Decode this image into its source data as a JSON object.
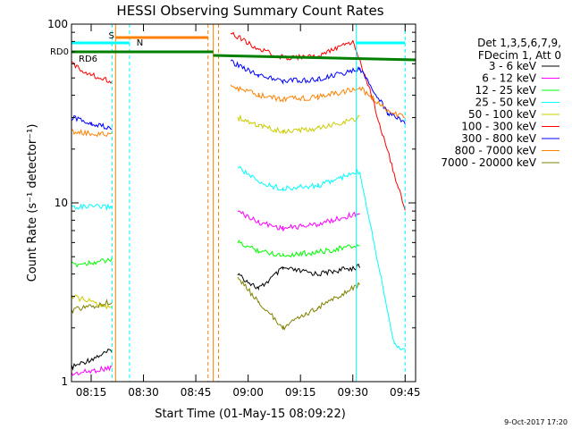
{
  "chart_data": {
    "type": "line",
    "title": "HESSI Observing Summary Count Rates",
    "xlabel": "Start Time (01-May-15 08:09:22)",
    "ylabel": "Count Rate (s⁻¹ detector⁻¹)",
    "y_scale": "log",
    "ylim": [
      1,
      100
    ],
    "xlim": [
      "08:09:22",
      "09:48:00"
    ],
    "x_ticks": [
      "08:15",
      "08:30",
      "08:45",
      "09:00",
      "09:15",
      "09:30",
      "09:45"
    ],
    "y_ticks": [
      "1",
      "10",
      "100"
    ],
    "legend_header": [
      "Det 1,3,5,6,7,9,",
      "FDecim 1, Att 0"
    ],
    "series": [
      {
        "name": "3 - 6 keV",
        "color": "#000000",
        "x": [
          "08:09:22",
          "08:21:00",
          "08:50:00",
          "08:57:00",
          "09:03:00",
          "09:10:00",
          "09:20:00",
          "09:32:00"
        ],
        "y": [
          1.2,
          1.5,
          null,
          4.0,
          3.3,
          4.3,
          4.0,
          4.4
        ]
      },
      {
        "name": "6 - 12 keV",
        "color": "#ff00ff",
        "x": [
          "08:09:22",
          "08:21:00",
          "08:50:00",
          "08:57:00",
          "09:03:00",
          "09:10:00",
          "09:20:00",
          "09:32:00"
        ],
        "y": [
          1.1,
          1.2,
          null,
          9.0,
          7.8,
          7.2,
          7.6,
          8.8
        ]
      },
      {
        "name": "12 - 25 keV",
        "color": "#00ff00",
        "x": [
          "08:09:22",
          "08:21:00",
          "08:50:00",
          "08:57:00",
          "09:03:00",
          "09:10:00",
          "09:20:00",
          "09:32:00"
        ],
        "y": [
          4.5,
          4.8,
          null,
          6.0,
          5.4,
          5.1,
          5.3,
          5.8
        ]
      },
      {
        "name": "25 - 50 keV",
        "color": "#00ffff",
        "x": [
          "08:09:22",
          "08:21:00",
          "08:50:00",
          "08:57:00",
          "09:03:00",
          "09:10:00",
          "09:20:00",
          "09:32:00",
          "09:42:00",
          "09:45:00"
        ],
        "y": [
          9.5,
          9.5,
          null,
          16,
          13,
          12,
          12.5,
          15,
          1.6,
          1.5
        ]
      },
      {
        "name": "50 - 100 keV",
        "color": "#cccc00",
        "x": [
          "08:09:22",
          "08:21:00",
          "08:50:00",
          "08:57:00",
          "09:03:00",
          "09:10:00",
          "09:20:00",
          "09:32:00"
        ],
        "y": [
          3.0,
          2.6,
          null,
          30,
          27,
          25,
          26,
          30
        ]
      },
      {
        "name": "100 - 300 keV",
        "color": "#ff0000",
        "x": [
          "08:09:22",
          "08:15:00",
          "08:21:00",
          "08:50:00",
          "08:55:00",
          "09:03:00",
          "09:10:00",
          "09:20:00",
          "09:30:00",
          "09:35:00",
          "09:45:00"
        ],
        "y": [
          60,
          52,
          48,
          null,
          90,
          72,
          65,
          66,
          80,
          42,
          9
        ]
      },
      {
        "name": "300 - 800 keV",
        "color": "#0000ff",
        "x": [
          "08:09:22",
          "08:15:00",
          "08:21:00",
          "08:50:00",
          "08:55:00",
          "09:03:00",
          "09:10:00",
          "09:20:00",
          "09:32:00",
          "09:40:00",
          "09:45:00"
        ],
        "y": [
          30,
          28,
          26,
          null,
          62,
          52,
          48,
          49,
          56,
          32,
          28
        ]
      },
      {
        "name": "800 - 7000 keV",
        "color": "#ff8000",
        "x": [
          "08:09:22",
          "08:21:00",
          "08:50:00",
          "08:55:00",
          "09:03:00",
          "09:10:00",
          "09:20:00",
          "09:32:00",
          "09:40:00",
          "09:45:00"
        ],
        "y": [
          25,
          24,
          null,
          45,
          40,
          38,
          39,
          44,
          33,
          30
        ]
      },
      {
        "name": "7000 - 20000 keV",
        "color": "#808000",
        "x": [
          "08:09:22",
          "08:21:00",
          "08:50:00",
          "08:57:00",
          "09:03:00",
          "09:10:00",
          "09:20:00",
          "09:32:00"
        ],
        "y": [
          2.5,
          2.8,
          null,
          3.8,
          2.8,
          2.0,
          2.6,
          3.5
        ]
      }
    ],
    "annotations": [
      {
        "label": "S",
        "color": "#ff8000"
      },
      {
        "label": "N",
        "color": "#00ffff"
      },
      {
        "label": "RD0",
        "color": "#008000"
      },
      {
        "label": "RD6",
        "color": "#008000"
      }
    ],
    "footer": "9-Oct-2017 17:20"
  }
}
